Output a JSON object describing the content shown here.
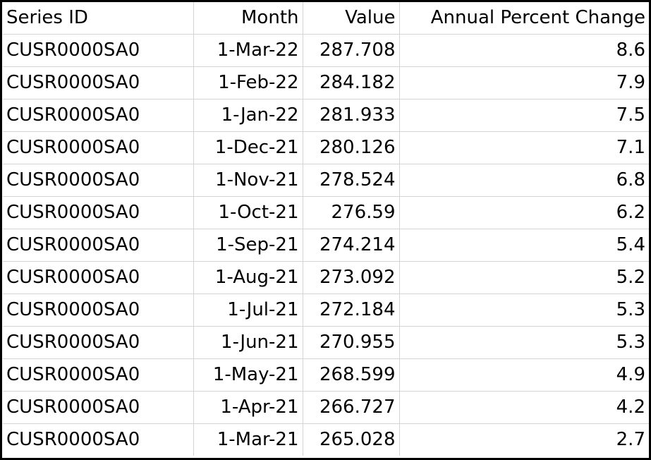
{
  "table": {
    "headers": [
      "Series ID",
      "Month",
      "Value",
      "Annual Percent Change"
    ],
    "rows": [
      [
        "CUSR0000SA0",
        "1-Mar-22",
        "287.708",
        "8.6"
      ],
      [
        "CUSR0000SA0",
        "1-Feb-22",
        "284.182",
        "7.9"
      ],
      [
        "CUSR0000SA0",
        "1-Jan-22",
        "281.933",
        "7.5"
      ],
      [
        "CUSR0000SA0",
        "1-Dec-21",
        "280.126",
        "7.1"
      ],
      [
        "CUSR0000SA0",
        "1-Nov-21",
        "278.524",
        "6.8"
      ],
      [
        "CUSR0000SA0",
        "1-Oct-21",
        "276.59",
        "6.2"
      ],
      [
        "CUSR0000SA0",
        "1-Sep-21",
        "274.214",
        "5.4"
      ],
      [
        "CUSR0000SA0",
        "1-Aug-21",
        "273.092",
        "5.2"
      ],
      [
        "CUSR0000SA0",
        "1-Jul-21",
        "272.184",
        "5.3"
      ],
      [
        "CUSR0000SA0",
        "1-Jun-21",
        "270.955",
        "5.3"
      ],
      [
        "CUSR0000SA0",
        "1-May-21",
        "268.599",
        "4.9"
      ],
      [
        "CUSR0000SA0",
        "1-Apr-21",
        "266.727",
        "4.2"
      ],
      [
        "CUSR0000SA0",
        "1-Mar-21",
        "265.028",
        "2.7"
      ]
    ]
  }
}
